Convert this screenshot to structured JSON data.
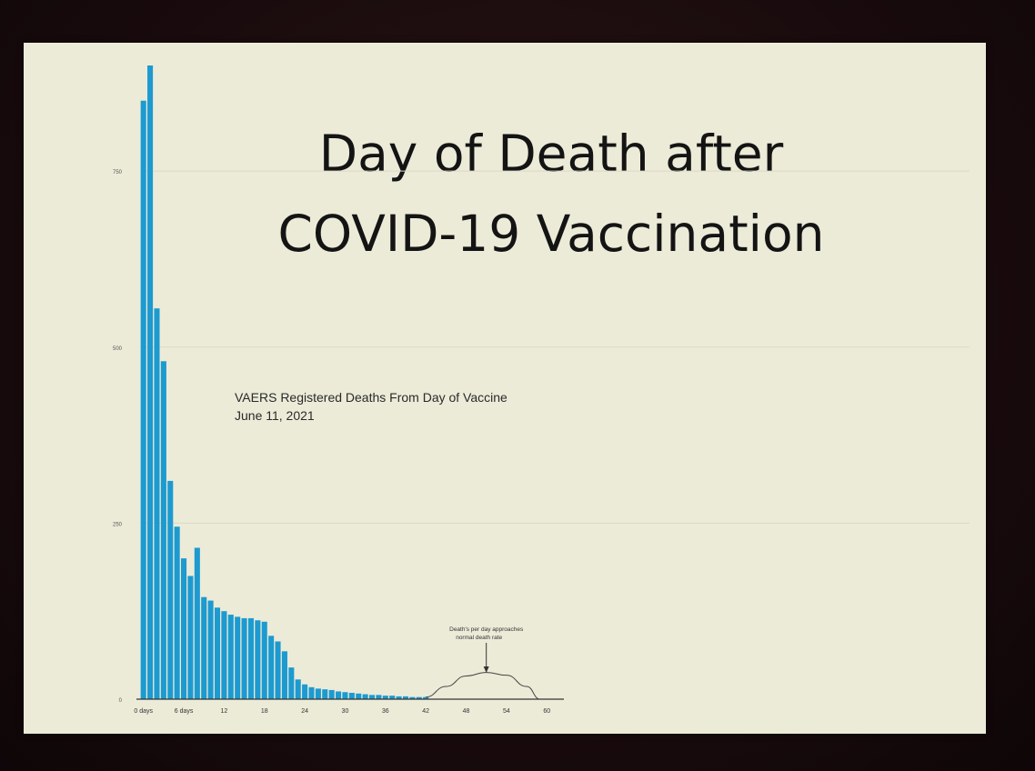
{
  "slide": {
    "title_line1": "Day of Death after",
    "title_line2": "COVID-19 Vaccination"
  },
  "chart_data": {
    "type": "bar",
    "subtitle": "VAERS Registered Deaths From Day of Vaccine",
    "date": "June 11, 2021",
    "xlabel": "",
    "ylabel": "",
    "ylim": [
      0,
      900
    ],
    "yticks": [
      "0",
      "250",
      "500",
      "750"
    ],
    "yticks_values": [
      0,
      250,
      500,
      750
    ],
    "xticks": [
      {
        "label": "0 days",
        "x": 0
      },
      {
        "label": "6 days",
        "x": 6
      },
      {
        "label": "12",
        "x": 12
      },
      {
        "label": "18",
        "x": 18
      },
      {
        "label": "24",
        "x": 24
      },
      {
        "label": "30",
        "x": 30
      },
      {
        "label": "36",
        "x": 36
      },
      {
        "label": "42",
        "x": 42
      },
      {
        "label": "48",
        "x": 48
      },
      {
        "label": "54",
        "x": 54
      },
      {
        "label": "60",
        "x": 60
      }
    ],
    "xlim": [
      -0.5,
      62
    ],
    "x": [
      0,
      1,
      2,
      3,
      4,
      5,
      6,
      7,
      8,
      9,
      10,
      11,
      12,
      13,
      14,
      15,
      16,
      17,
      18,
      19,
      20,
      21,
      22,
      23,
      24,
      25,
      26,
      27,
      28,
      29,
      30,
      31,
      32,
      33,
      34,
      35,
      36,
      37,
      38,
      39,
      40,
      41,
      42
    ],
    "values": [
      850,
      900,
      555,
      480,
      310,
      245,
      200,
      175,
      215,
      145,
      140,
      130,
      125,
      120,
      117,
      115,
      115,
      112,
      110,
      90,
      82,
      68,
      45,
      28,
      21,
      17,
      15,
      14,
      13,
      11,
      10,
      9,
      8,
      7,
      6,
      6,
      5,
      5,
      4,
      4,
      3,
      3,
      3
    ],
    "bar_color": "#1d9ad0",
    "annotation": {
      "text_line1": "Death's per day approaches",
      "text_line2": "normal death rate",
      "arrow_x": 51
    },
    "curve": {
      "x": [
        42,
        45,
        48,
        51,
        54,
        57,
        59
      ],
      "y": [
        3,
        18,
        33,
        38,
        34,
        18,
        0
      ]
    }
  }
}
